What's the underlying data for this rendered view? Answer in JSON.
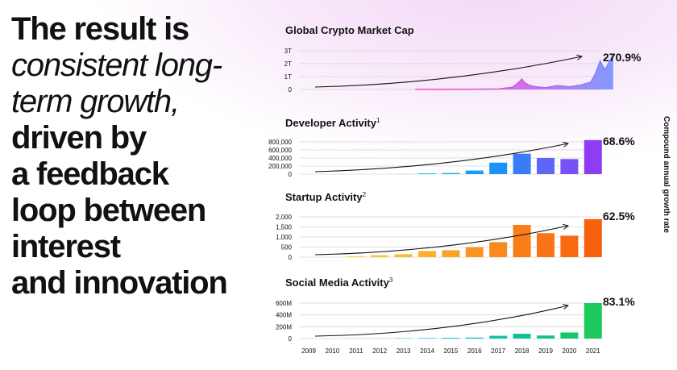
{
  "headline": {
    "line1": "The result is",
    "line2": "consistent long-",
    "line3": "term growth,",
    "line4": "driven by",
    "line5": "a feedback",
    "line6": "loop between",
    "line7": "interest",
    "line8": "and innovation"
  },
  "side_label": "Compound annual growth rate",
  "years": [
    "2009",
    "2010",
    "2011",
    "2012",
    "2013",
    "2014",
    "2015",
    "2016",
    "2017",
    "2018",
    "2019",
    "2020",
    "2021"
  ],
  "chart_data": [
    {
      "type": "area",
      "title": "Global Crypto Market Cap",
      "title_sup": "",
      "growth": "270.9%",
      "y_ticks": [
        "3T",
        "2T",
        "1T",
        "0"
      ],
      "ylim": [
        0,
        3
      ],
      "unit": "T",
      "x": [
        2013.5,
        2014,
        2015,
        2016,
        2017.0,
        2017.6,
        2017.8,
        2018.0,
        2018.1,
        2018.3,
        2018.6,
        2019,
        2019.5,
        2020,
        2020.5,
        2020.9,
        2021.1,
        2021.3,
        2021.5,
        2021.7,
        2021.85
      ],
      "values": [
        0.01,
        0.01,
        0.01,
        0.02,
        0.04,
        0.17,
        0.45,
        0.8,
        0.55,
        0.32,
        0.2,
        0.14,
        0.3,
        0.2,
        0.35,
        0.55,
        1.2,
        2.2,
        1.5,
        2.2,
        2.7
      ],
      "grid": true
    },
    {
      "type": "bar",
      "title": "Developer Activity",
      "title_sup": "1",
      "growth": "68.6%",
      "y_ticks": [
        "800,000",
        "600,000",
        "400,000",
        "200,000",
        "0"
      ],
      "ylim": [
        0,
        900000
      ],
      "categories": [
        "2009",
        "2010",
        "2011",
        "2012",
        "2013",
        "2014",
        "2015",
        "2016",
        "2017",
        "2018",
        "2019",
        "2020",
        "2021"
      ],
      "values": [
        0,
        0,
        0,
        0,
        3000,
        20000,
        30000,
        100000,
        320000,
        570000,
        450000,
        420000,
        950000
      ],
      "colors": [
        "#00c8f0",
        "#00c8f0",
        "#00c8f0",
        "#00c8f0",
        "#00c8f0",
        "#07bbf2",
        "#0daef4",
        "#14a0f6",
        "#1a92f8",
        "#3a7cf8",
        "#5c66f7",
        "#7651f6",
        "#8f3cf5"
      ],
      "grid": true
    },
    {
      "type": "bar",
      "title": "Startup Activity",
      "title_sup": "2",
      "growth": "62.5%",
      "y_ticks": [
        "2,000",
        "1,500",
        "1,000",
        "500",
        "0"
      ],
      "ylim": [
        0,
        2100
      ],
      "categories": [
        "2009",
        "2010",
        "2011",
        "2012",
        "2013",
        "2014",
        "2015",
        "2016",
        "2017",
        "2018",
        "2019",
        "2020",
        "2021"
      ],
      "values": [
        0,
        0,
        50,
        100,
        150,
        320,
        360,
        520,
        780,
        1680,
        1250,
        1120,
        1980
      ],
      "colors": [
        "#ffd236",
        "#ffd236",
        "#ffd236",
        "#fec632",
        "#fdba2e",
        "#fdae2a",
        "#fca226",
        "#fb9622",
        "#fa8a1e",
        "#f97e1a",
        "#f87416",
        "#f76a12",
        "#f6600e"
      ],
      "grid": true
    },
    {
      "type": "bar",
      "title": "Social Media Activity",
      "title_sup": "3",
      "growth": "83.1%",
      "y_ticks": [
        "600M",
        "400M",
        "200M",
        "0"
      ],
      "ylim": [
        0,
        700
      ],
      "categories": [
        "2009",
        "2010",
        "2011",
        "2012",
        "2013",
        "2014",
        "2015",
        "2016",
        "2017",
        "2018",
        "2019",
        "2020",
        "2021"
      ],
      "values": [
        0,
        0,
        2,
        3,
        6,
        10,
        15,
        20,
        55,
        95,
        60,
        120,
        700
      ],
      "colors": [
        "#00c8f0",
        "#00c8f0",
        "#00c8f0",
        "#00c8f0",
        "#00c8f0",
        "#04c7e0",
        "#07c6cf",
        "#0ac5bd",
        "#0dc4aa",
        "#10c396",
        "#13c380",
        "#16c66b",
        "#1cc95c"
      ],
      "grid": true
    }
  ]
}
